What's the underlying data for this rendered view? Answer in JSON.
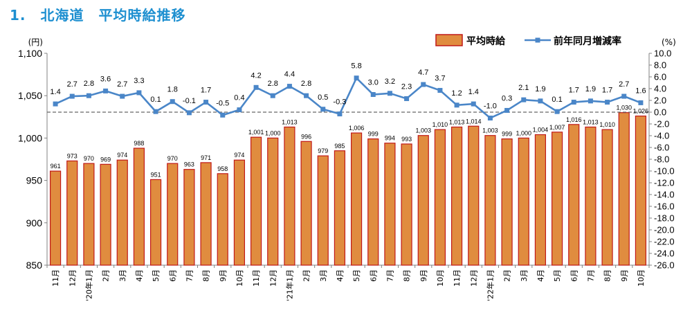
{
  "page": {
    "title": "1.　北海道　平均時給推移"
  },
  "chart_data": {
    "type": "bar+line",
    "categories": [
      "11月",
      "12月",
      "'20年1月",
      "2月",
      "3月",
      "4月",
      "5月",
      "6月",
      "7月",
      "8月",
      "9月",
      "10月",
      "11月",
      "12月",
      "'21年1月",
      "2月",
      "3月",
      "4月",
      "5月",
      "6月",
      "7月",
      "8月",
      "9月",
      "10月",
      "11月",
      "12月",
      "'22年1月",
      "2月",
      "3月",
      "4月",
      "5月",
      "6月",
      "7月",
      "8月",
      "9月",
      "10月"
    ],
    "series": [
      {
        "name": "平均時給",
        "type": "bar",
        "axis": "left",
        "color": "#e08c3f",
        "edge_color": "#c01818",
        "values": [
          961,
          973,
          970,
          969,
          974,
          988,
          951,
          970,
          963,
          971,
          958,
          974,
          1001,
          1000,
          1013,
          996,
          979,
          985,
          1006,
          999,
          994,
          993,
          1003,
          1010,
          1013,
          1014,
          1003,
          999,
          1000,
          1004,
          1007,
          1016,
          1013,
          1010,
          1030,
          1026
        ],
        "labels": [
          "961",
          "973",
          "970",
          "969",
          "974",
          "988",
          "951",
          "970",
          "963",
          "971",
          "958",
          "974",
          "1,001",
          "1,000",
          "1,013",
          "996",
          "979",
          "985",
          "1,006",
          "999",
          "994",
          "993",
          "1,003",
          "1,010",
          "1,013",
          "1,014",
          "1,003",
          "999",
          "1,000",
          "1,004",
          "1,007",
          "1,016",
          "1,013",
          "1,010",
          "1,030",
          "1,026"
        ]
      },
      {
        "name": "前年同月増減率",
        "type": "line",
        "axis": "right",
        "color": "#4a86c8",
        "values": [
          1.4,
          2.7,
          2.8,
          3.6,
          2.7,
          3.3,
          0.1,
          1.8,
          -0.1,
          1.7,
          -0.5,
          0.4,
          4.2,
          2.8,
          4.4,
          2.8,
          0.5,
          -0.3,
          5.8,
          3.0,
          3.2,
          2.3,
          4.7,
          3.7,
          1.2,
          1.4,
          -1.0,
          0.3,
          2.1,
          1.9,
          0.1,
          1.7,
          1.9,
          1.7,
          2.7,
          1.6
        ],
        "labels": [
          "1.4",
          "2.7",
          "2.8",
          "3.6",
          "2.7",
          "3.3",
          "0.1",
          "1.8",
          "-0.1",
          "1.7",
          "-0.5",
          "0.4",
          "4.2",
          "2.8",
          "4.4",
          "2.8",
          "0.5",
          "-0.3",
          "5.8",
          "3.0",
          "3.2",
          "2.3",
          "4.7",
          "3.7",
          "1.2",
          "1.4",
          "-1.0",
          "0.3",
          "2.1",
          "1.9",
          "0.1",
          "1.7",
          "1.9",
          "1.7",
          "2.7",
          "1.6"
        ]
      }
    ],
    "y_left": {
      "unit": "(円)",
      "min": 850,
      "max": 1100,
      "step": 50,
      "ticks": [
        "850",
        "900",
        "950",
        "1,000",
        "1,050",
        "1,100"
      ]
    },
    "y_right": {
      "unit": "(%)",
      "min": -26,
      "max": 10,
      "step": 2,
      "ticks": [
        "-26.0",
        "-24.0",
        "-22.0",
        "-20.0",
        "-18.0",
        "-16.0",
        "-14.0",
        "-12.0",
        "-10.0",
        "-8.0",
        "-6.0",
        "-4.0",
        "-2.0",
        "0.0",
        "2.0",
        "4.0",
        "6.0",
        "8.0",
        "10.0"
      ]
    },
    "zero_line": {
      "value": 0,
      "style": "dashed",
      "color": "#666666"
    },
    "legend": {
      "position": "top-right",
      "items": [
        "平均時給",
        "前年同月増減率"
      ]
    },
    "grid": false
  }
}
